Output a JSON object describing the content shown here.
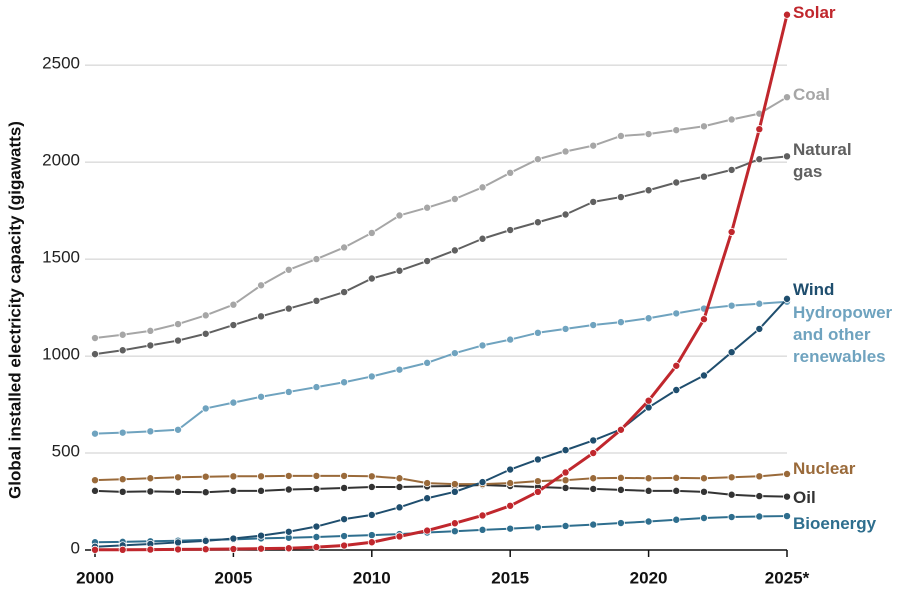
{
  "chart_data": {
    "type": "line",
    "y_label": "Global installed electricity capacity (gigawatts)",
    "x": [
      2000,
      2001,
      2002,
      2003,
      2004,
      2005,
      2006,
      2007,
      2008,
      2009,
      2010,
      2011,
      2012,
      2013,
      2014,
      2015,
      2016,
      2017,
      2018,
      2019,
      2020,
      2021,
      2022,
      2023,
      2024,
      2025
    ],
    "xlim": [
      2000,
      2025
    ],
    "xticks": [
      2000,
      2005,
      2010,
      2015,
      2020,
      {
        "value": 2025,
        "label": "2025*"
      }
    ],
    "ylim": [
      0,
      2800
    ],
    "yticks": [
      0,
      500,
      1000,
      1500,
      2000,
      2500
    ],
    "grid": true,
    "series": [
      {
        "name": "Solar",
        "color": "#c0272d",
        "values": [
          1,
          1,
          2,
          3,
          4,
          5,
          7,
          9,
          15,
          23,
          40,
          70,
          100,
          138,
          178,
          228,
          300,
          400,
          500,
          620,
          770,
          950,
          1190,
          1640,
          2170,
          2760
        ]
      },
      {
        "name": "Coal",
        "color": "#a6a6a6",
        "values": [
          1093,
          1110,
          1130,
          1165,
          1210,
          1265,
          1365,
          1445,
          1500,
          1560,
          1635,
          1725,
          1765,
          1810,
          1870,
          1945,
          2015,
          2055,
          2085,
          2135,
          2145,
          2165,
          2185,
          2220,
          2250,
          2335
        ]
      },
      {
        "name": "Natural gas",
        "color": "#606060",
        "values": [
          1010,
          1030,
          1055,
          1080,
          1115,
          1160,
          1205,
          1245,
          1285,
          1330,
          1400,
          1440,
          1490,
          1545,
          1605,
          1650,
          1690,
          1730,
          1795,
          1820,
          1855,
          1895,
          1925,
          1960,
          2015,
          2030
        ]
      },
      {
        "name": "Wind",
        "color": "#1f4e6e",
        "values": [
          17,
          24,
          31,
          39,
          47,
          59,
          74,
          94,
          121,
          159,
          181,
          220,
          267,
          300,
          350,
          415,
          467,
          515,
          565,
          622,
          735,
          825,
          900,
          1020,
          1140,
          1295
        ]
      },
      {
        "name": "Hydropower and other renewables",
        "color": "#6fa3bf",
        "values": [
          600,
          605,
          612,
          620,
          730,
          760,
          790,
          815,
          840,
          865,
          895,
          930,
          965,
          1015,
          1055,
          1085,
          1120,
          1140,
          1160,
          1175,
          1195,
          1220,
          1245,
          1260,
          1270,
          1280
        ]
      },
      {
        "name": "Nuclear",
        "color": "#9a6a3a",
        "values": [
          360,
          365,
          370,
          375,
          378,
          380,
          380,
          382,
          382,
          382,
          380,
          370,
          345,
          340,
          340,
          345,
          355,
          360,
          370,
          372,
          370,
          372,
          370,
          375,
          380,
          392
        ]
      },
      {
        "name": "Oil",
        "color": "#333333",
        "values": [
          305,
          300,
          302,
          300,
          298,
          305,
          305,
          312,
          315,
          320,
          325,
          325,
          328,
          330,
          335,
          330,
          325,
          320,
          315,
          310,
          305,
          305,
          300,
          285,
          278,
          275
        ]
      },
      {
        "name": "Bioenergy",
        "color": "#2e6e8e",
        "values": [
          40,
          42,
          45,
          48,
          52,
          55,
          60,
          63,
          67,
          72,
          77,
          82,
          90,
          97,
          104,
          110,
          117,
          124,
          131,
          139,
          147,
          156,
          165,
          170,
          173,
          175
        ]
      }
    ]
  }
}
